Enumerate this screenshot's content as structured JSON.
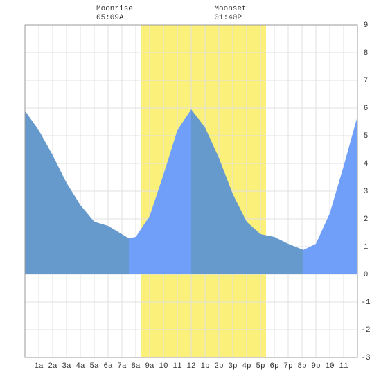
{
  "chart_data": {
    "type": "area",
    "x": [
      0,
      1,
      2,
      3,
      4,
      5,
      6,
      7,
      7.5,
      8,
      9,
      10,
      11,
      12,
      13,
      14,
      15,
      16,
      17,
      18,
      19,
      20,
      20.1,
      21,
      22,
      23,
      24
    ],
    "values": [
      5.9,
      5.2,
      4.3,
      3.3,
      2.5,
      1.9,
      1.75,
      1.45,
      1.3,
      1.35,
      2.1,
      3.6,
      5.2,
      5.95,
      5.3,
      4.2,
      2.9,
      1.9,
      1.45,
      1.35,
      1.1,
      0.9,
      0.88,
      1.1,
      2.2,
      3.9,
      5.7
    ],
    "rising_color": "#6f9ff9",
    "falling_color": "#6699cc",
    "daylight": [
      8.4,
      17.4
    ],
    "daylight_color": "#fbf07a",
    "events": [
      {
        "name": "Moonrise",
        "time": "05:09A",
        "x": 5.15
      },
      {
        "name": "Moonset",
        "time": "01:40P",
        "x": 13.67
      }
    ],
    "xlim": [
      0,
      24
    ],
    "ylim": [
      -3,
      9
    ],
    "yticks": [
      -3,
      -2,
      -1,
      0,
      1,
      2,
      3,
      4,
      5,
      6,
      7,
      8,
      9
    ],
    "xticks": [
      {
        "value": 1,
        "label": "1a"
      },
      {
        "value": 2,
        "label": "2a"
      },
      {
        "value": 3,
        "label": "3a"
      },
      {
        "value": 4,
        "label": "4a"
      },
      {
        "value": 5,
        "label": "5a"
      },
      {
        "value": 6,
        "label": "6a"
      },
      {
        "value": 7,
        "label": "7a"
      },
      {
        "value": 8,
        "label": "8a"
      },
      {
        "value": 9,
        "label": "9a"
      },
      10,
      11,
      12,
      {
        "value": 13,
        "label": "1p"
      },
      {
        "value": 14,
        "label": "2p"
      },
      {
        "value": 15,
        "label": "3p"
      },
      {
        "value": 16,
        "label": "4p"
      },
      {
        "value": 17,
        "label": "5p"
      },
      {
        "value": 18,
        "label": "6p"
      },
      {
        "value": 19,
        "label": "7p"
      },
      {
        "value": 20,
        "label": "8p"
      },
      {
        "value": 21,
        "label": "9p"
      },
      {
        "value": 22,
        "label": "10"
      },
      {
        "value": 23,
        "label": "11"
      }
    ],
    "grid": true
  }
}
